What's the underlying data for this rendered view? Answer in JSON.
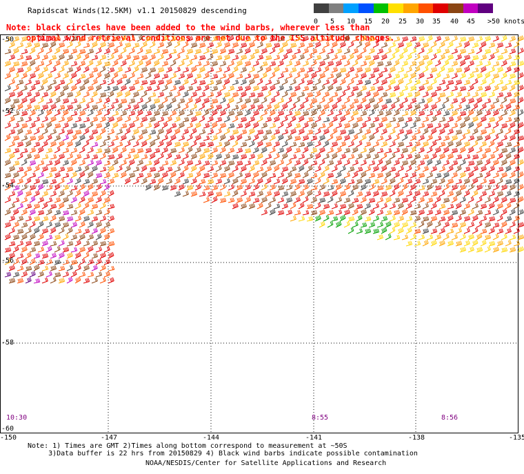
{
  "title": "Rapidscat Winds(12.5KM) v1.1 20150829 descending",
  "note_red": [
    "Note: black circles have been added to the wind barbs, wherever less than",
    "    optimal wind retrieval conditions are met due to the ISS altitude changes."
  ],
  "legend": {
    "labels": [
      "0",
      "5",
      "10",
      "15",
      "20",
      "25",
      "30",
      "35",
      "40",
      "45",
      ">50 knots"
    ],
    "colors": [
      "#404040",
      "#808080",
      "#00a0ff",
      "#0050ff",
      "#00c000",
      "#ffe000",
      "#ffa500",
      "#ff5000",
      "#e00000",
      "#8b4513",
      "#c000c0",
      "#600080"
    ]
  },
  "axes": {
    "lon_ticks": [
      "-150",
      "-147",
      "-144",
      "-141",
      "-138",
      "-135"
    ],
    "lat_ticks": [
      "-50",
      "-52",
      "-54",
      "-56",
      "-58",
      "-60"
    ]
  },
  "times": [
    "10:30",
    "8:55",
    "8:56"
  ],
  "footnotes": [
    "Note: 1) Times are GMT 2)Times along bottom correspond to measurement at ~50S",
    "     3)Data buffer is 22 hrs from 20150829 4) Black wind barbs indicate possible contamination"
  ],
  "credit": "NOAA/NESDIS/Center for Satellite Applications and Research"
}
